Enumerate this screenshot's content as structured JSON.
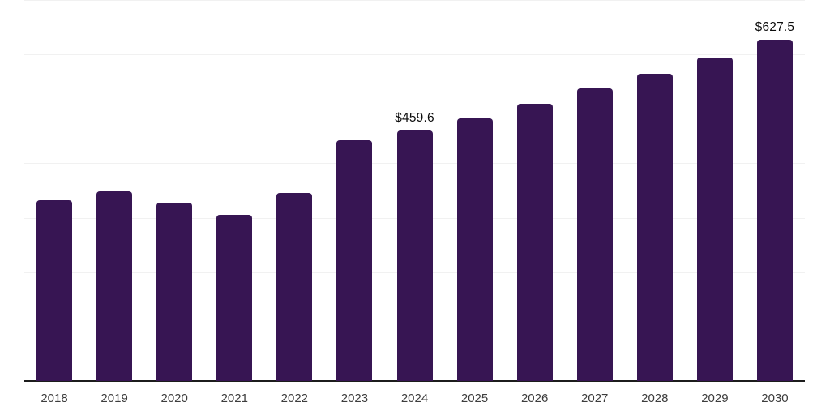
{
  "chart": {
    "background": "#ffffff",
    "bar_color": "#371553",
    "axis_line_color": "#1c1c1c",
    "gridline_color": "#f1f1f1",
    "x_label_color": "#3d3d3d",
    "value_label_color": "#0d0d0d"
  },
  "chart_data": {
    "type": "bar",
    "title": "",
    "xlabel": "",
    "ylabel": "",
    "categories": [
      "2018",
      "2019",
      "2020",
      "2021",
      "2022",
      "2023",
      "2024",
      "2025",
      "2026",
      "2027",
      "2028",
      "2029",
      "2030"
    ],
    "values": [
      332,
      349,
      328,
      306,
      346,
      443,
      459.6,
      483,
      510,
      537,
      565,
      595,
      627.5
    ],
    "data_labels": [
      {
        "category": "2024",
        "text": "$459.6"
      },
      {
        "category": "2030",
        "text": "$627.5"
      }
    ],
    "ylim": [
      0,
      700
    ],
    "gridline_step": 100,
    "grid": "horizontal",
    "legend": "none",
    "y_axis_ticks_visible": false
  }
}
